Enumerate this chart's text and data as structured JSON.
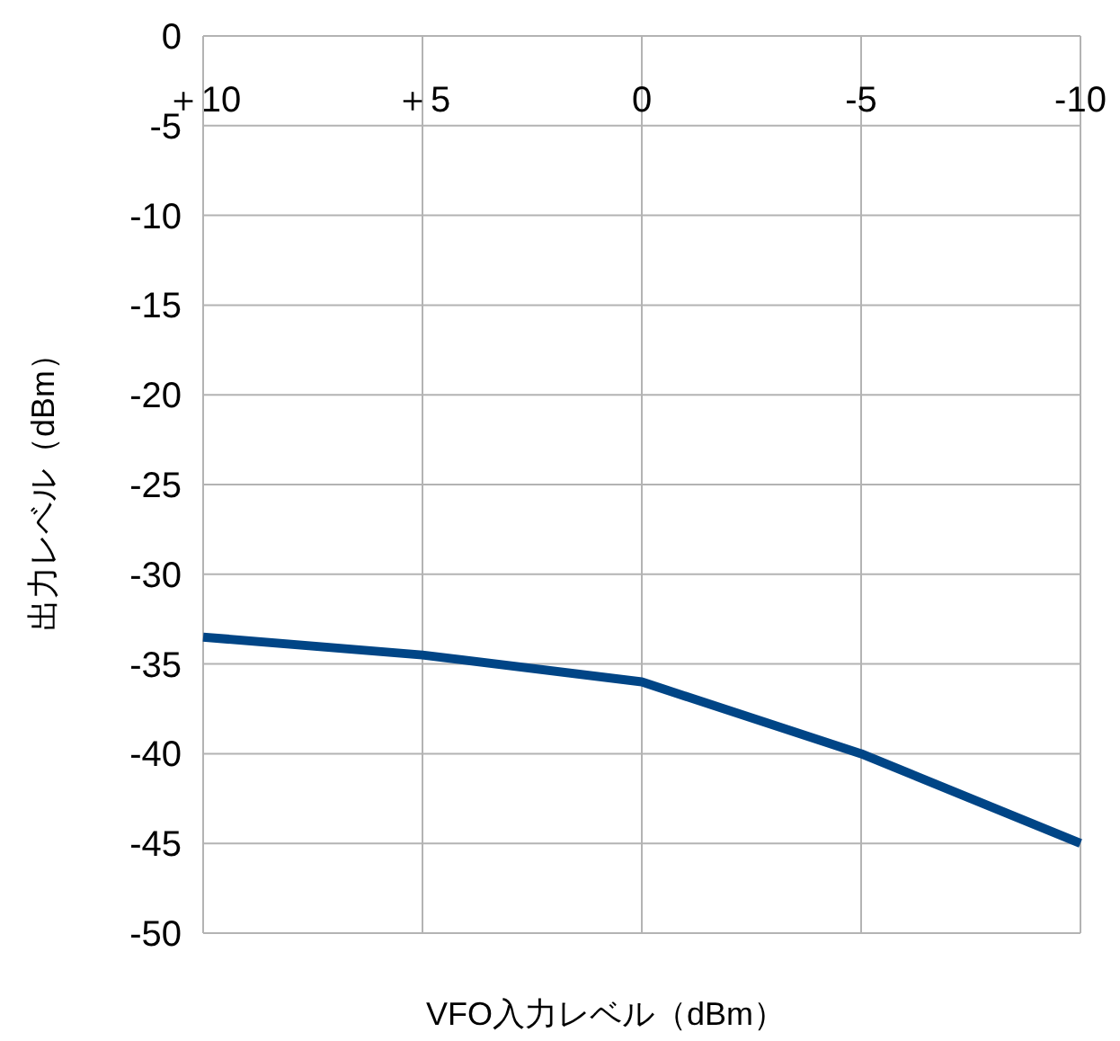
{
  "chart_data": {
    "type": "line",
    "categories": [
      "＋10",
      "＋5",
      "0",
      "-5",
      "-10"
    ],
    "series": [
      {
        "color": "#004586",
        "values": [
          -33.5,
          -34.5,
          -36,
          -40,
          -45
        ]
      }
    ],
    "ylim": [
      -50,
      0
    ],
    "yticks": [
      0,
      -5,
      -10,
      -15,
      -20,
      -25,
      -30,
      -35,
      -40,
      -45,
      -50
    ],
    "grid": true,
    "xlabel": "VFO入力レベル（dBm）",
    "ylabel": "出力レベル（dBm）"
  }
}
